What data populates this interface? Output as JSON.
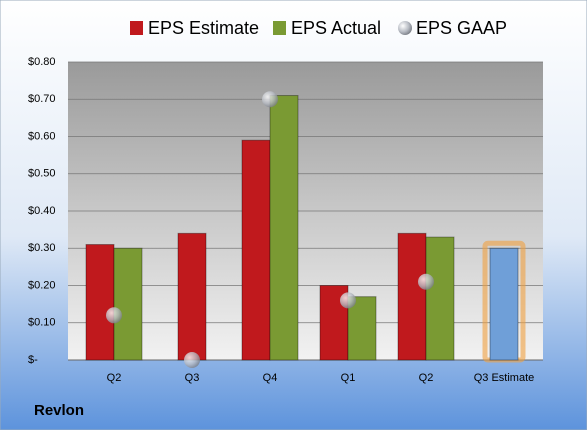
{
  "chart_data": {
    "type": "bar",
    "title": "Revlon",
    "categories": [
      "Q2",
      "Q3",
      "Q4",
      "Q1",
      "Q2",
      "Q3 Estimate"
    ],
    "series": [
      {
        "name": "EPS Estimate",
        "color": "#c0191d",
        "values": [
          0.31,
          0.34,
          0.59,
          0.2,
          0.34,
          0.3
        ]
      },
      {
        "name": "EPS Actual",
        "color": "#7a9a33",
        "values": [
          0.3,
          null,
          0.71,
          0.17,
          0.33,
          null
        ]
      },
      {
        "name": "EPS GAAP",
        "color": "#b8bcc4",
        "type": "scatter",
        "values": [
          0.12,
          0.0,
          0.7,
          0.16,
          0.21,
          null
        ]
      }
    ],
    "highlight": {
      "series": 0,
      "index": 5,
      "color": "#6f9fd8",
      "glow": "#f0a040"
    },
    "ylim": [
      0,
      0.8
    ],
    "yticks": [
      {
        "value": 0,
        "label": "$-"
      },
      {
        "value": 0.1,
        "label": "$0.10"
      },
      {
        "value": 0.2,
        "label": "$0.20"
      },
      {
        "value": 0.3,
        "label": "$0.30"
      },
      {
        "value": 0.4,
        "label": "$0.40"
      },
      {
        "value": 0.5,
        "label": "$0.50"
      },
      {
        "value": 0.6,
        "label": "$0.60"
      },
      {
        "value": 0.7,
        "label": "$0.70"
      },
      {
        "value": 0.8,
        "label": "$0.80"
      }
    ],
    "grid": true,
    "legend": "top"
  }
}
